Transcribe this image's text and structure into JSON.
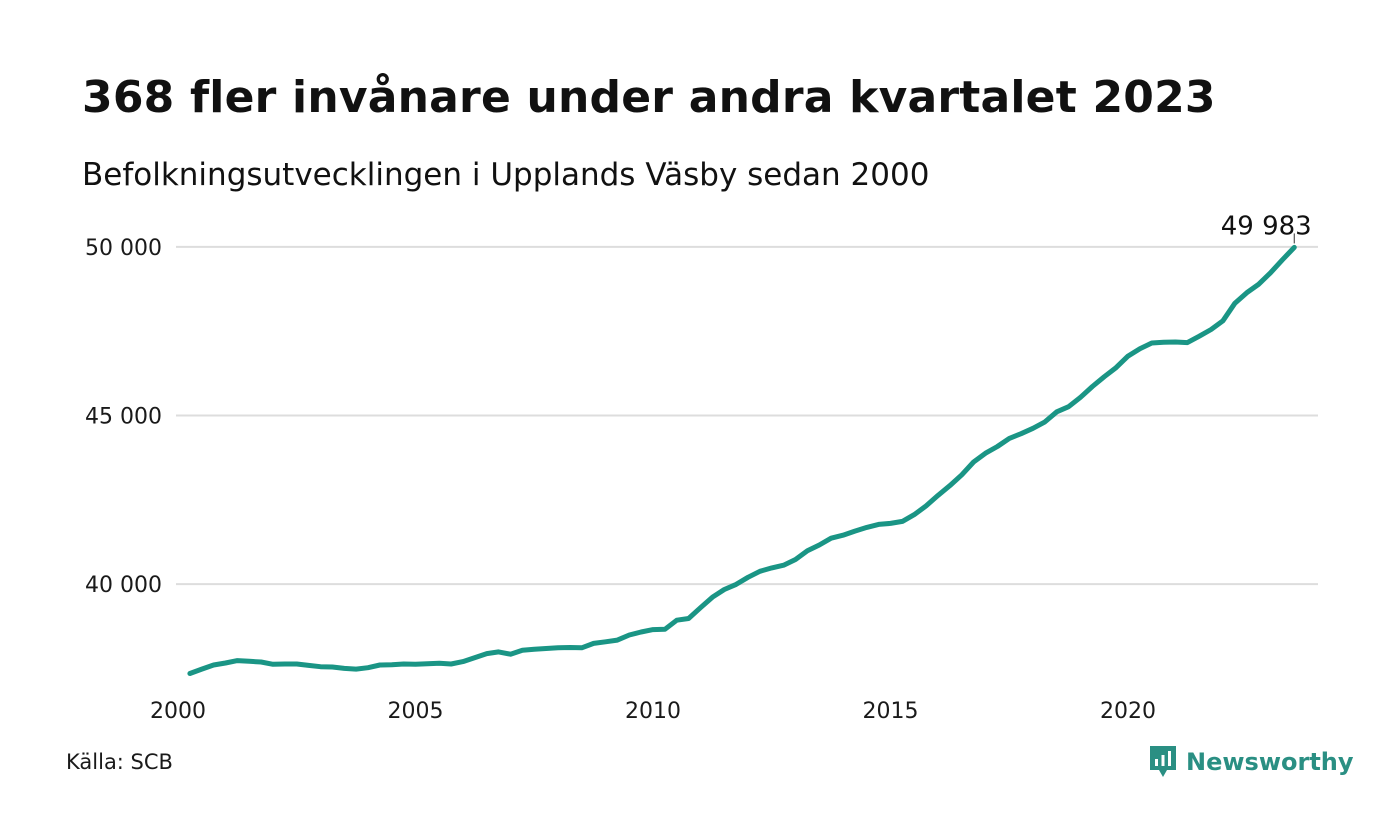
{
  "header": {
    "title": "368 fler invånare under andra kvartalet 2023",
    "subtitle": "Befolkningsutvecklingen i Upplands Väsby sedan 2000"
  },
  "footer": {
    "source": "Källa: SCB",
    "brand": "Newsworthy"
  },
  "colors": {
    "line": "#1a9585",
    "brand": "#2a8f83",
    "grid": "#dddddd"
  },
  "chart_data": {
    "type": "line",
    "title": "368 fler invånare under andra kvartalet 2023",
    "subtitle": "Befolkningsutvecklingen i Upplands Väsby sedan 2000",
    "x_ticks": [
      "2000",
      "2005",
      "2010",
      "2015",
      "2020"
    ],
    "y_ticks": [
      "40 000",
      "45 000",
      "50 000"
    ],
    "y_tick_values": [
      40000,
      45000,
      50000
    ],
    "x_tick_values": [
      2000,
      2005,
      2010,
      2015,
      2020
    ],
    "xlim": [
      2000,
      2024
    ],
    "ylim": [
      36800,
      50500
    ],
    "grid": true,
    "end_label": "49 983",
    "series": [
      {
        "x": [
          2000.25,
          2000.5,
          2000.75,
          2001.0,
          2001.25,
          2001.5,
          2001.75,
          2002.0,
          2002.25,
          2002.5,
          2002.75,
          2003.0,
          2003.25,
          2003.5,
          2003.75,
          2004.0,
          2004.25,
          2004.5,
          2004.75,
          2005.0,
          2005.25,
          2005.5,
          2005.75,
          2006.0,
          2006.25,
          2006.5,
          2006.75,
          2007.0,
          2007.25,
          2007.5,
          2007.75,
          2008.0,
          2008.25,
          2008.5,
          2008.75,
          2009.0,
          2009.25,
          2009.5,
          2009.75,
          2010.0,
          2010.25,
          2010.5,
          2010.75,
          2011.0,
          2011.25,
          2011.5,
          2011.75,
          2012.0,
          2012.25,
          2012.5,
          2012.75,
          2013.0,
          2013.25,
          2013.5,
          2013.75,
          2014.0,
          2014.25,
          2014.5,
          2014.75,
          2015.0,
          2015.25,
          2015.5,
          2015.75,
          2016.0,
          2016.25,
          2016.5,
          2016.75,
          2017.0,
          2017.25,
          2017.5,
          2017.75,
          2018.0,
          2018.25,
          2018.5,
          2018.75,
          2019.0,
          2019.25,
          2019.5,
          2019.75,
          2020.0,
          2020.25,
          2020.5,
          2020.75,
          2021.0,
          2021.25,
          2021.5,
          2021.75,
          2022.0,
          2022.25,
          2022.5,
          2022.75,
          2023.0,
          2023.25,
          2023.5
        ],
        "values": [
          37350,
          37480,
          37600,
          37660,
          37730,
          37710,
          37690,
          37620,
          37630,
          37630,
          37590,
          37550,
          37540,
          37500,
          37480,
          37520,
          37600,
          37610,
          37630,
          37620,
          37640,
          37650,
          37630,
          37700,
          37820,
          37940,
          37990,
          37920,
          38040,
          38070,
          38090,
          38110,
          38120,
          38110,
          38240,
          38290,
          38340,
          38490,
          38580,
          38650,
          38660,
          38930,
          38980,
          39300,
          39610,
          39840,
          39990,
          40200,
          40380,
          40480,
          40560,
          40730,
          40990,
          41160,
          41360,
          41450,
          41570,
          41680,
          41770,
          41800,
          41860,
          42060,
          42320,
          42630,
          42920,
          43240,
          43620,
          43880,
          44080,
          44320,
          44460,
          44620,
          44810,
          45110,
          45260,
          45540,
          45860,
          46150,
          46420,
          46760,
          46980,
          47150,
          47170,
          47180,
          47160,
          47350,
          47550,
          47810,
          48330,
          48640,
          48890,
          49230,
          49615,
          49983
        ]
      }
    ]
  }
}
